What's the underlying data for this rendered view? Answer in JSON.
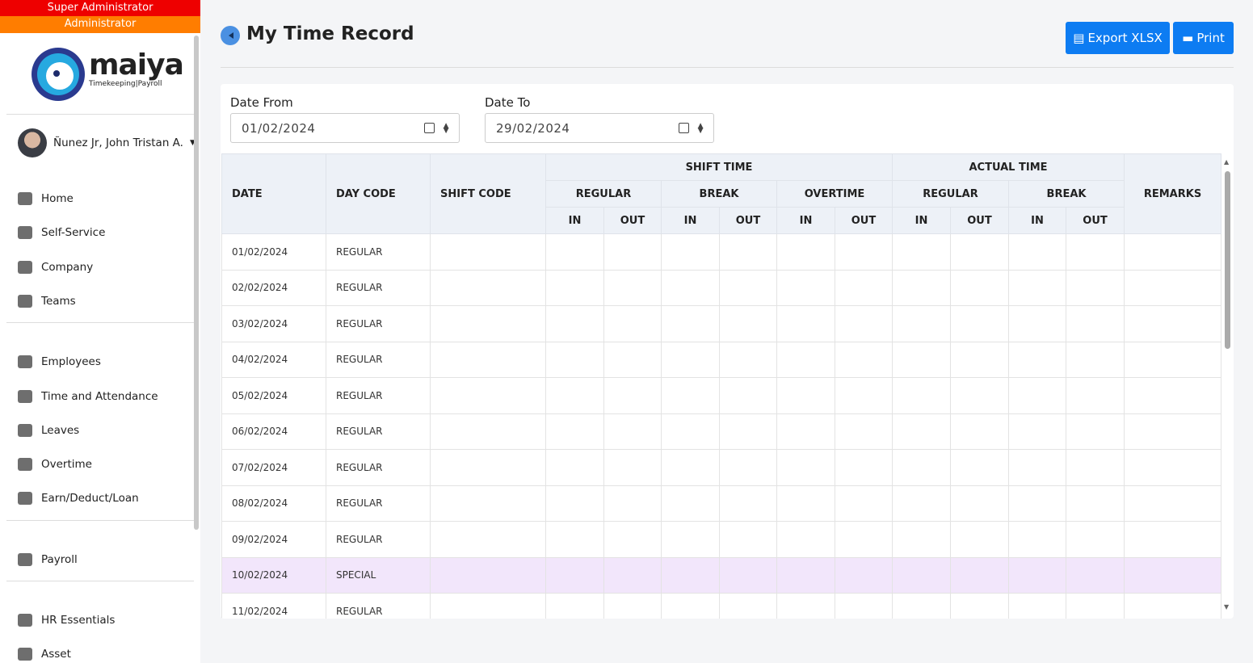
{
  "sidebar": {
    "roles": [
      "Super Administrator",
      "Administrator"
    ],
    "logo": {
      "name": "maiya",
      "tagline": "Timekeeping|Payroll"
    },
    "user": "Ñunez Jr, John Tristan A.",
    "menu_groups": [
      [
        "Home",
        "Self-Service",
        "Company",
        "Teams"
      ],
      [
        "Employees",
        "Time and Attendance",
        "Leaves",
        "Overtime",
        "Earn/Deduct/Loan"
      ],
      [
        "Payroll"
      ],
      [
        "HR Essentials",
        "Asset"
      ]
    ]
  },
  "header": {
    "title": "My Time Record",
    "buttons": [
      "Export XLSX",
      "Print"
    ]
  },
  "filters": [
    {
      "label": "Date From",
      "value": "01/02/2024"
    },
    {
      "label": "Date To",
      "value": "29/02/2024"
    }
  ],
  "table": {
    "columns": [
      "DATE",
      "DAY CODE",
      "SHIFT CODE"
    ],
    "groups": [
      {
        "label": "SHIFT TIME",
        "subgroups": [
          "REGULAR",
          "BREAK",
          "OVERTIME"
        ]
      },
      {
        "label": "ACTUAL TIME",
        "subgroups": [
          "REGULAR",
          "BREAK"
        ]
      }
    ],
    "in_out": [
      "IN",
      "OUT"
    ],
    "last_column": "REMARKS",
    "rows": [
      [
        "01/02/2024",
        "REGULAR"
      ],
      [
        "02/02/2024",
        "REGULAR"
      ],
      [
        "03/02/2024",
        "REGULAR"
      ],
      [
        "04/02/2024",
        "REGULAR"
      ],
      [
        "05/02/2024",
        "REGULAR"
      ],
      [
        "06/02/2024",
        "REGULAR"
      ],
      [
        "07/02/2024",
        "REGULAR"
      ],
      [
        "08/02/2024",
        "REGULAR"
      ],
      [
        "09/02/2024",
        "REGULAR"
      ],
      [
        "10/02/2024",
        "SPECIAL"
      ],
      [
        "11/02/2024",
        "REGULAR"
      ]
    ]
  }
}
